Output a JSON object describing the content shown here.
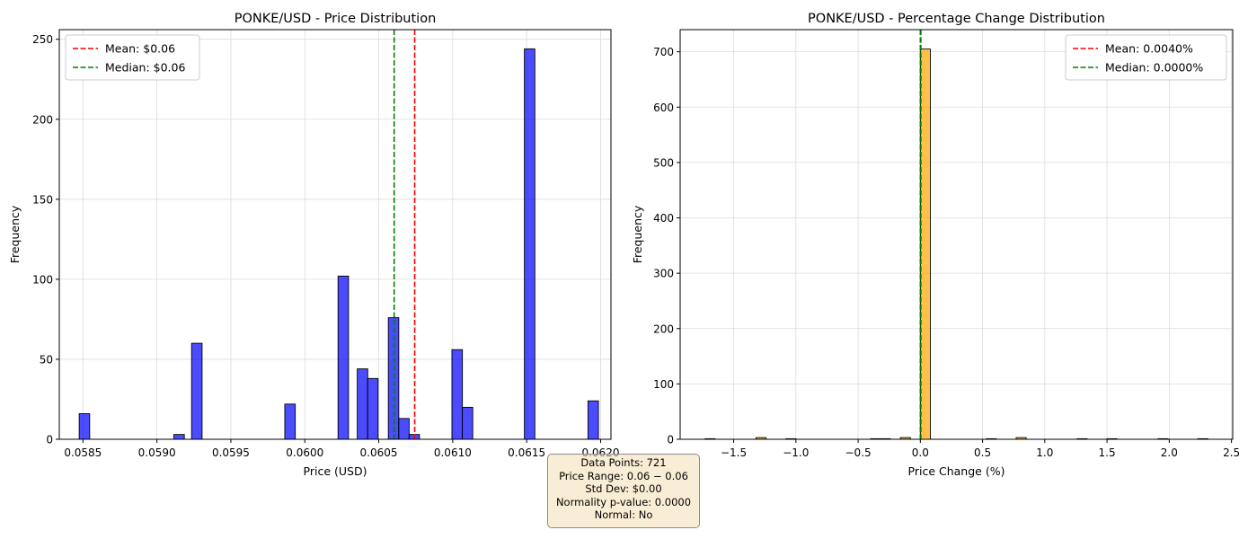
{
  "chart_data": [
    {
      "type": "bar",
      "title": "PONKE/USD - Price Distribution",
      "xlabel": "Price (USD)",
      "ylabel": "Frequency",
      "xlim": [
        0.05834,
        0.06207
      ],
      "ylim": [
        0,
        256
      ],
      "xticks": [
        {
          "value": 0.0585,
          "label": "0.0585"
        },
        {
          "value": 0.059,
          "label": "0.0590"
        },
        {
          "value": 0.0595,
          "label": "0.0595"
        },
        {
          "value": 0.06,
          "label": "0.0600"
        },
        {
          "value": 0.0605,
          "label": "0.0605"
        },
        {
          "value": 0.061,
          "label": "0.0610"
        },
        {
          "value": 0.0615,
          "label": "0.0615"
        },
        {
          "value": 0.062,
          "label": "0.0620"
        }
      ],
      "yticks": [
        {
          "value": 0,
          "label": "0"
        },
        {
          "value": 50,
          "label": "50"
        },
        {
          "value": 100,
          "label": "100"
        },
        {
          "value": 150,
          "label": "150"
        },
        {
          "value": 200,
          "label": "200"
        },
        {
          "value": 250,
          "label": "250"
        }
      ],
      "bin_width": 7.09e-05,
      "bins": [
        {
          "x": 0.05851,
          "count": 16
        },
        {
          "x": 0.05915,
          "count": 3
        },
        {
          "x": 0.05927,
          "count": 60
        },
        {
          "x": 0.0599,
          "count": 22
        },
        {
          "x": 0.06026,
          "count": 102
        },
        {
          "x": 0.06039,
          "count": 44
        },
        {
          "x": 0.06046,
          "count": 38
        },
        {
          "x": 0.0606,
          "count": 76
        },
        {
          "x": 0.06067,
          "count": 13
        },
        {
          "x": 0.06074,
          "count": 3
        },
        {
          "x": 0.06103,
          "count": 56
        },
        {
          "x": 0.0611,
          "count": 20
        },
        {
          "x": 0.06152,
          "count": 244
        },
        {
          "x": 0.06195,
          "count": 24
        }
      ],
      "bar_color": "#3333ff",
      "lines": [
        {
          "label": "Mean: $0.06",
          "value": 0.060743,
          "color": "#ff0000"
        },
        {
          "label": "Median: $0.06",
          "value": 0.060604,
          "color": "#008000"
        }
      ],
      "legend": "upper left",
      "grid": true
    },
    {
      "type": "bar",
      "title": "PONKE/USD - Percentage Change Distribution",
      "xlabel": "Price Change (%)",
      "ylabel": "Frequency",
      "xlim": [
        -1.93,
        2.51
      ],
      "ylim": [
        0,
        740
      ],
      "xticks": [
        {
          "value": -1.5,
          "label": "−1.5"
        },
        {
          "value": -1.0,
          "label": "−1.0"
        },
        {
          "value": -0.5,
          "label": "−0.5"
        },
        {
          "value": 0.0,
          "label": "0.0"
        },
        {
          "value": 0.5,
          "label": "0.5"
        },
        {
          "value": 1.0,
          "label": "1.0"
        },
        {
          "value": 1.5,
          "label": "1.5"
        },
        {
          "value": 2.0,
          "label": "2.0"
        },
        {
          "value": 2.5,
          "label": "2.5"
        }
      ],
      "yticks": [
        {
          "value": 0,
          "label": "0"
        },
        {
          "value": 100,
          "label": "100"
        },
        {
          "value": 200,
          "label": "200"
        },
        {
          "value": 300,
          "label": "300"
        },
        {
          "value": 400,
          "label": "400"
        },
        {
          "value": 500,
          "label": "500"
        },
        {
          "value": 600,
          "label": "600"
        },
        {
          "value": 700,
          "label": "700"
        }
      ],
      "bin_width": 0.0805,
      "bins": [
        {
          "x": -1.69,
          "count": 1
        },
        {
          "x": -1.28,
          "count": 3
        },
        {
          "x": -1.04,
          "count": 1
        },
        {
          "x": -0.36,
          "count": 1
        },
        {
          "x": -0.28,
          "count": 1
        },
        {
          "x": -0.12,
          "count": 3
        },
        {
          "x": 0.04,
          "count": 705
        },
        {
          "x": 0.57,
          "count": 1
        },
        {
          "x": 0.81,
          "count": 3
        },
        {
          "x": 1.3,
          "count": 1
        },
        {
          "x": 1.54,
          "count": 1
        },
        {
          "x": 1.95,
          "count": 1
        },
        {
          "x": 2.27,
          "count": 1
        }
      ],
      "bar_color": "#ffa500",
      "lines": [
        {
          "label": "Mean: 0.0040%",
          "value": 0.004,
          "color": "#ff0000"
        },
        {
          "label": "Median: 0.0000%",
          "value": 0.0,
          "color": "#008000"
        }
      ],
      "legend": "upper right",
      "grid": true
    }
  ],
  "stats": {
    "data_points": "Data Points: 721",
    "price_range": "Price Range: 0.06 − 0.06",
    "std_dev": "Std Dev: $0.00",
    "normality": "Normality p-value: 0.0000",
    "normal": "Normal: No"
  }
}
